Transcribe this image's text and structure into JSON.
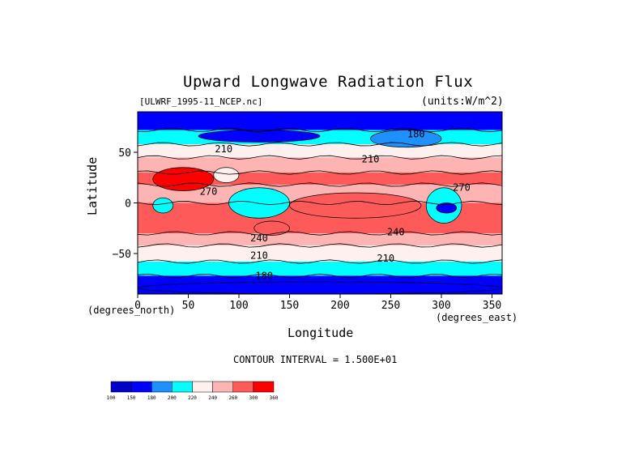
{
  "chart_data": {
    "type": "heatmap",
    "title": "Upward Longwave Radiation Flux",
    "source": "[ULWRF_1995-11_NCEP.nc]",
    "units_label": "(units:W/m^2)",
    "xlabel": "Longitude",
    "ylabel": "Latitude",
    "x_units_label": "(degrees_east)",
    "y_units_label": "(degrees_north)",
    "x_ticks": [
      0,
      50,
      100,
      150,
      200,
      250,
      300,
      350
    ],
    "y_ticks": [
      -50,
      0,
      50
    ],
    "xlim": [
      0,
      360
    ],
    "ylim": [
      -90,
      90
    ],
    "contour_interval_text": "CONTOUR INTERVAL = 1.500E+01",
    "colorbar": {
      "levels": [
        100,
        150,
        180,
        200,
        220,
        240,
        260,
        300,
        360
      ],
      "colors": [
        "#0000c8",
        "#0000ff",
        "#1e90ff",
        "#00ffff",
        "#fff0f0",
        "#ffb4b4",
        "#ff5a5a",
        "#ff0000"
      ]
    },
    "contour_labels": [
      {
        "text": "180",
        "lon": 275,
        "lat": 65
      },
      {
        "text": "210",
        "lon": 85,
        "lat": 50
      },
      {
        "text": "210",
        "lon": 230,
        "lat": 40
      },
      {
        "text": "210",
        "lon": 245,
        "lat": -58
      },
      {
        "text": "210",
        "lon": 120,
        "lat": -55
      },
      {
        "text": "240",
        "lon": 120,
        "lat": -38
      },
      {
        "text": "240",
        "lon": 255,
        "lat": -32
      },
      {
        "text": "270",
        "lon": 320,
        "lat": 12
      },
      {
        "text": "270",
        "lon": 70,
        "lat": 8
      },
      {
        "text": "180",
        "lon": 125,
        "lat": -75
      }
    ],
    "lat_bands": [
      {
        "lat_from": 90,
        "lat_to": 72,
        "flux": 170
      },
      {
        "lat_from": 72,
        "lat_to": 58,
        "flux": 200
      },
      {
        "lat_from": 58,
        "lat_to": 45,
        "flux": 220
      },
      {
        "lat_from": 45,
        "lat_to": 30,
        "flux": 250
      },
      {
        "lat_from": 30,
        "lat_to": 18,
        "flux": 275
      },
      {
        "lat_from": 18,
        "lat_to": 0,
        "flux": 240
      },
      {
        "lat_from": 0,
        "lat_to": -30,
        "flux": 280
      },
      {
        "lat_from": -30,
        "lat_to": -42,
        "flux": 245
      },
      {
        "lat_from": -42,
        "lat_to": -58,
        "flux": 225
      },
      {
        "lat_from": -58,
        "lat_to": -72,
        "flux": 205
      },
      {
        "lat_from": -72,
        "lat_to": -90,
        "flux": 170
      }
    ],
    "features": [
      {
        "desc": "Sahara/Arabia hot",
        "lon_from": 15,
        "lon_to": 75,
        "lat_from": 35,
        "lat_to": 12,
        "flux": 330
      },
      {
        "desc": "India/Tibet",
        "lon_from": 75,
        "lon_to": 100,
        "lat_from": 35,
        "lat_to": 20,
        "flux": 230
      },
      {
        "desc": "Maritime continent convection",
        "lon_from": 90,
        "lon_to": 150,
        "lat_from": 15,
        "lat_to": -15,
        "flux": 205
      },
      {
        "desc": "Africa convection",
        "lon_from": 15,
        "lon_to": 35,
        "lat_from": 5,
        "lat_to": -10,
        "flux": 205
      },
      {
        "desc": "South America convection",
        "lon_from": 285,
        "lon_to": 320,
        "lat_from": 15,
        "lat_to": -20,
        "flux": 200
      },
      {
        "desc": "South America deep",
        "lon_from": 295,
        "lon_to": 315,
        "lat_from": 0,
        "lat_to": -10,
        "flux": 170
      },
      {
        "desc": "Pacific warm belt",
        "lon_from": 150,
        "lon_to": 280,
        "lat_from": 10,
        "lat_to": -15,
        "flux": 285
      },
      {
        "desc": "Australia",
        "lon_from": 115,
        "lon_to": 150,
        "lat_from": -18,
        "lat_to": -32,
        "flux": 260
      },
      {
        "desc": "Siberia cold",
        "lon_from": 60,
        "lon_to": 180,
        "lat_from": 72,
        "lat_to": 60,
        "flux": 175
      },
      {
        "desc": "North America cold",
        "lon_from": 230,
        "lon_to": 300,
        "lat_from": 72,
        "lat_to": 55,
        "flux": 185
      },
      {
        "desc": "Antarctica",
        "lon_from": 0,
        "lon_to": 360,
        "lat_from": -78,
        "lat_to": -90,
        "flux": 150
      }
    ]
  }
}
